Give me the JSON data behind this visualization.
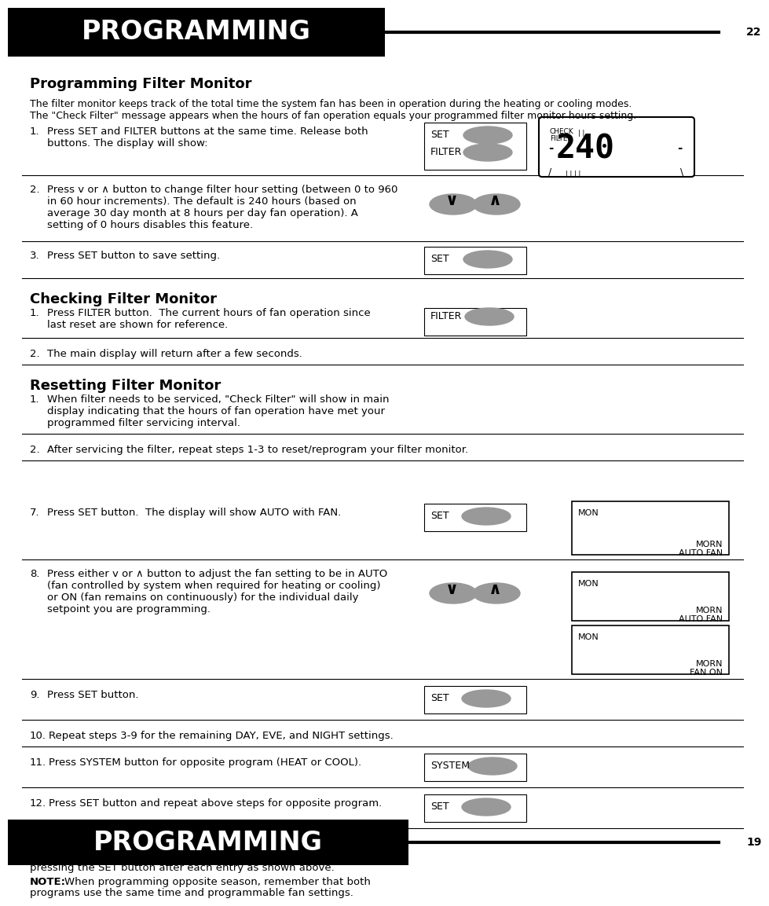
{
  "page_title": "PROGRAMMING",
  "page_num_top": "22",
  "page_num_bottom": "19",
  "section1_title": "Programming Filter Monitor",
  "section2_title": "Checking Filter Monitor",
  "section3_title": "Resetting Filter Monitor",
  "intro_line1": "The filter monitor keeps track of the total time the system fan has been in operation during the heating or cooling modes.",
  "intro_line2": "The \"Check Filter\" message appears when the hours of fan operation equals your programmed filter monitor hours setting.",
  "bg_color": "#ffffff",
  "header_bg": "#000000",
  "header_text": "#ffffff",
  "button_color": "#999999"
}
